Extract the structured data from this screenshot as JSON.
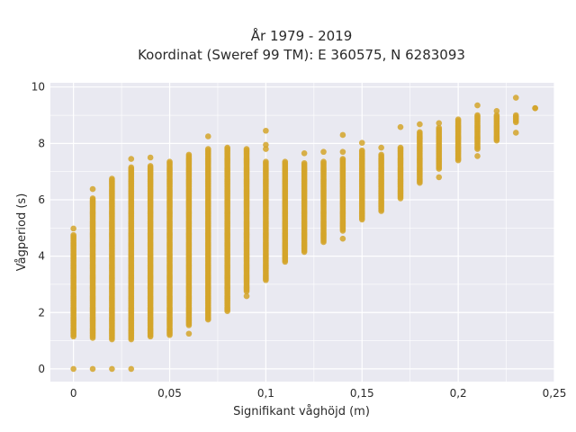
{
  "chart_data": {
    "type": "scatter",
    "title_lines": [
      "År 1979 - 2019",
      "Koordinat (Sweref 99 TM): E 360575, N 6283093"
    ],
    "xlabel": "Signifikant våghöjd (m)",
    "ylabel": "Vågperiod (s)",
    "xlim": [
      -0.012,
      0.25
    ],
    "ylim": [
      -0.45,
      10.15
    ],
    "x_ticks": [
      0,
      0.05,
      0.1,
      0.15,
      0.2,
      0.25
    ],
    "x_tick_labels": [
      "0",
      "0,05",
      "0,1",
      "0,15",
      "0,2",
      "0,25"
    ],
    "y_ticks": [
      0,
      2,
      4,
      6,
      8,
      10
    ],
    "y_tick_labels": [
      "0",
      "2",
      "4",
      "6",
      "8",
      "10"
    ],
    "grid": true,
    "legend": "none",
    "colors": {
      "points": "#d4a52a",
      "plot_bg": "#e9e9f1",
      "grid": "#ffffff"
    },
    "columns": [
      {
        "x": 0.0,
        "ymin": 1.15,
        "ymax": 4.75,
        "outliers": [
          0.0,
          4.98
        ]
      },
      {
        "x": 0.01,
        "ymin": 1.1,
        "ymax": 6.05,
        "outliers": [
          0.0,
          6.38
        ]
      },
      {
        "x": 0.02,
        "ymin": 1.05,
        "ymax": 6.75,
        "outliers": [
          0.0
        ]
      },
      {
        "x": 0.03,
        "ymin": 1.05,
        "ymax": 7.15,
        "outliers": [
          0.0,
          7.45
        ]
      },
      {
        "x": 0.04,
        "ymin": 1.15,
        "ymax": 7.2,
        "outliers": [
          7.5
        ]
      },
      {
        "x": 0.05,
        "ymin": 1.2,
        "ymax": 7.35,
        "outliers": []
      },
      {
        "x": 0.06,
        "ymin": 1.55,
        "ymax": 7.6,
        "outliers": [
          1.25
        ]
      },
      {
        "x": 0.07,
        "ymin": 1.75,
        "ymax": 7.8,
        "outliers": [
          8.25
        ]
      },
      {
        "x": 0.08,
        "ymin": 2.05,
        "ymax": 7.85,
        "outliers": []
      },
      {
        "x": 0.09,
        "ymin": 2.75,
        "ymax": 7.8,
        "outliers": [
          2.58
        ]
      },
      {
        "x": 0.1,
        "ymin": 3.15,
        "ymax": 7.35,
        "outliers": [
          7.8,
          7.95,
          8.45
        ]
      },
      {
        "x": 0.11,
        "ymin": 3.8,
        "ymax": 7.35,
        "outliers": []
      },
      {
        "x": 0.12,
        "ymin": 4.15,
        "ymax": 7.3,
        "outliers": [
          7.65
        ]
      },
      {
        "x": 0.13,
        "ymin": 4.5,
        "ymax": 7.35,
        "outliers": [
          7.7
        ]
      },
      {
        "x": 0.14,
        "ymin": 4.9,
        "ymax": 7.45,
        "outliers": [
          4.62,
          7.7,
          8.3
        ]
      },
      {
        "x": 0.15,
        "ymin": 5.3,
        "ymax": 7.75,
        "outliers": [
          8.02
        ]
      },
      {
        "x": 0.16,
        "ymin": 5.6,
        "ymax": 7.6,
        "outliers": [
          7.85
        ]
      },
      {
        "x": 0.17,
        "ymin": 6.05,
        "ymax": 7.85,
        "outliers": [
          8.58
        ]
      },
      {
        "x": 0.18,
        "ymin": 6.6,
        "ymax": 8.4,
        "outliers": [
          8.68
        ]
      },
      {
        "x": 0.19,
        "ymin": 7.1,
        "ymax": 8.55,
        "outliers": [
          6.8,
          8.72
        ]
      },
      {
        "x": 0.2,
        "ymin": 7.4,
        "ymax": 8.85,
        "outliers": []
      },
      {
        "x": 0.21,
        "ymin": 7.8,
        "ymax": 9.0,
        "outliers": [
          7.55,
          9.35
        ]
      },
      {
        "x": 0.22,
        "ymin": 8.1,
        "ymax": 9.0,
        "outliers": [
          9.15
        ]
      },
      {
        "x": 0.23,
        "ymin": 8.75,
        "ymax": 9.0,
        "outliers": [
          8.38,
          9.62
        ]
      },
      {
        "x": 0.24,
        "ymin": 9.25,
        "ymax": 9.25,
        "outliers": []
      }
    ]
  }
}
